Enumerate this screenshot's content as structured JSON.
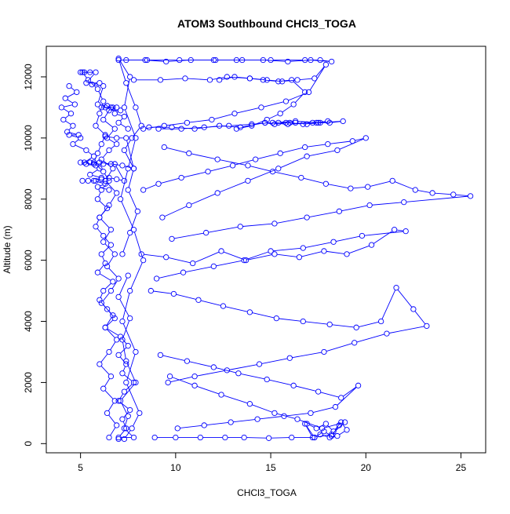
{
  "chart_data": {
    "type": "scatter",
    "title": "ATOM3 Southbound CHCl3_TOGA",
    "xlabel": "CHCl3_TOGA",
    "ylabel": "Altitude (m)",
    "xlim": [
      3.2,
      26.3
    ],
    "ylim": [
      -300,
      13000
    ],
    "x_ticks": [
      5,
      10,
      15,
      20,
      25
    ],
    "y_ticks": [
      0,
      2000,
      4000,
      6000,
      8000,
      10000,
      12000
    ],
    "grid": false,
    "legend": "none",
    "marker": "open-circle",
    "connected": true,
    "series_color": "#0000ff",
    "series": [
      {
        "x": [
          5.1,
          5.4,
          5.9,
          6.2,
          6.0,
          5.8,
          6.3,
          6.1,
          5.9,
          5.7,
          6.2,
          6.5,
          6.1,
          5.9,
          6.4,
          6.0,
          5.8,
          6.2,
          6.6,
          6.1,
          6.3,
          5.9,
          6.7,
          6.2,
          6.0,
          6.4,
          6.8,
          6.3,
          7.1,
          7.5,
          7.0,
          7.4,
          7.2,
          7.8,
          7.3,
          7.0,
          7.6,
          7.2,
          7.4,
          7.0,
          7.8,
          7.3,
          7.5,
          7.1,
          7.9,
          7.4,
          7.2,
          7.6,
          7.0,
          7.5
        ],
        "y": [
          12150,
          11900,
          11600,
          11200,
          10800,
          10400,
          10100,
          9800,
          9500,
          9200,
          8900,
          8600,
          8300,
          8000,
          7700,
          7400,
          7100,
          6800,
          6500,
          6200,
          5900,
          5600,
          5300,
          5000,
          4700,
          4400,
          4100,
          3800,
          3500,
          3200,
          2900,
          2600,
          2300,
          2000,
          1700,
          1400,
          1100,
          800,
          500,
          200,
          200,
          500,
          900,
          1400,
          2000,
          2700,
          3400,
          4100,
          4800,
          5500
        ]
      },
      {
        "x": [
          7.2,
          7.6,
          8.0,
          7.5,
          7.8,
          7.3,
          7.7,
          8.2,
          7.9,
          7.4,
          7.0,
          7.6,
          7.3,
          7.9,
          7.5,
          7.1,
          7.8,
          8.3,
          7.6,
          7.2,
          7.9,
          7.4,
          8.1,
          7.7,
          7.3,
          7.0
        ],
        "y": [
          6200,
          6900,
          7600,
          8300,
          9000,
          9600,
          10000,
          10400,
          11000,
          11800,
          12600,
          12000,
          11000,
          10000,
          9000,
          8000,
          7000,
          6000,
          5000,
          4000,
          3000,
          2000,
          1000,
          500,
          150,
          150
        ]
      },
      {
        "x": [
          6.5,
          6.9,
          6.4,
          6.8,
          6.2,
          6.6,
          6.0,
          6.5,
          6.9,
          6.3,
          6.7,
          6.1,
          6.6,
          7.0,
          6.4,
          6.8,
          6.2,
          6.6,
          6.0,
          6.5,
          6.9,
          6.3,
          6.7,
          6.1,
          6.5,
          6.9,
          6.4,
          6.8,
          6.2,
          6.6
        ],
        "y": [
          200,
          600,
          1000,
          1400,
          1800,
          2200,
          2600,
          3000,
          3400,
          3800,
          4200,
          4600,
          5000,
          5400,
          5800,
          6200,
          6600,
          7000,
          7400,
          7800,
          8200,
          8600,
          9000,
          9300,
          9600,
          9800,
          10000,
          10300,
          10600,
          11000
        ]
      },
      {
        "x": [
          4.4,
          4.8,
          4.2,
          4.7,
          4.0,
          4.5,
          4.1,
          4.6,
          4.3,
          4.9,
          4.4,
          5.0,
          4.6,
          5.3,
          5.7,
          5.2,
          5.8,
          6.0,
          5.5,
          6.1,
          5.7,
          6.3,
          5.9,
          6.5
        ],
        "y": [
          11700,
          11500,
          11300,
          11100,
          11000,
          10800,
          10600,
          10400,
          10200,
          10100,
          10100,
          10000,
          9800,
          9600,
          9400,
          9200,
          9100,
          9000,
          8800,
          8700,
          8600,
          8500,
          8400,
          8300
        ]
      },
      {
        "x": [
          5.2,
          5.5,
          5.0,
          5.8,
          5.3,
          6.0,
          5.6,
          6.2,
          5.9,
          6.4,
          6.1,
          6.7,
          6.3,
          6.9,
          6.5,
          7.1,
          6.8,
          7.3,
          7.0,
          7.5
        ],
        "y": [
          12150,
          12150,
          12150,
          12150,
          11800,
          11800,
          11750,
          11700,
          11100,
          11050,
          11000,
          11000,
          11000,
          11000,
          10900,
          10900,
          10800,
          10700,
          10500,
          10300
        ]
      },
      {
        "x": [
          5.1,
          5.4,
          5.8,
          6.1,
          6.5,
          6.9,
          7.3,
          6.8,
          6.2,
          5.7,
          5.3,
          5.0,
          5.5,
          6.0,
          6.6,
          7.2,
          7.8,
          7.4,
          6.9,
          6.3
        ],
        "y": [
          8600,
          8600,
          8600,
          8650,
          8700,
          8650,
          8600,
          9150,
          9150,
          9150,
          9150,
          9200,
          9200,
          9200,
          9150,
          9100,
          9000,
          10000,
          10000,
          10050
        ]
      },
      {
        "x": [
          7.0,
          8.5,
          10.2,
          12.1,
          13.5,
          15.0,
          16.8,
          17.6,
          18.2,
          17.1,
          15.9,
          14.6,
          13.2,
          12.0,
          10.8,
          9.5,
          8.4,
          7.4
        ],
        "y": [
          12550,
          12550,
          12550,
          12550,
          12550,
          12550,
          12550,
          12550,
          12500,
          12550,
          12500,
          12550,
          12550,
          12550,
          12550,
          12500,
          12550,
          12550
        ]
      },
      {
        "x": [
          7.8,
          9.2,
          10.5,
          11.8,
          12.7,
          13.9,
          14.8,
          15.6,
          16.4,
          17.3,
          17.9,
          17.0,
          15.8,
          14.5,
          13.1,
          11.9,
          10.6,
          9.4,
          8.3
        ],
        "y": [
          11900,
          11900,
          11950,
          11900,
          12000,
          11950,
          11900,
          11850,
          11900,
          11950,
          12400,
          11500,
          11200,
          11000,
          10800,
          10600,
          10500,
          10400,
          10300
        ]
      },
      {
        "x": [
          8.6,
          9.8,
          11.0,
          12.3,
          13.4,
          14.7,
          15.9,
          17.2,
          18.1,
          18.8,
          17.6,
          16.3,
          15.1,
          14.0,
          12.8,
          11.5,
          10.3,
          9.1
        ],
        "y": [
          10350,
          10350,
          10300,
          10400,
          10350,
          10500,
          10450,
          10500,
          10500,
          10550,
          10500,
          10550,
          10500,
          10450,
          10400,
          10350,
          10300,
          10300
        ]
      },
      {
        "x": [
          9.4,
          10.7,
          12.2,
          13.8,
          15.1,
          16.6,
          17.9,
          19.2,
          20.1,
          21.4,
          22.6,
          23.5,
          24.6,
          25.5,
          22.0,
          20.2,
          18.6,
          16.9,
          15.2,
          13.4,
          11.6,
          9.8
        ],
        "y": [
          9700,
          9500,
          9300,
          9100,
          8900,
          8700,
          8500,
          8350,
          8400,
          8600,
          8300,
          8200,
          8150,
          8100,
          7900,
          7800,
          7600,
          7400,
          7200,
          7100,
          6900,
          6700
        ]
      },
      {
        "x": [
          8.2,
          9.5,
          10.9,
          12.4,
          13.7,
          15.2,
          16.5,
          17.8,
          19.0,
          20.3,
          21.5,
          22.1,
          19.8,
          18.3,
          16.7,
          15.0,
          13.6,
          12.0,
          10.4,
          9.0
        ],
        "y": [
          6200,
          6100,
          5900,
          6300,
          6000,
          6200,
          6100,
          6300,
          6200,
          6500,
          7000,
          6950,
          6800,
          6600,
          6400,
          6300,
          6000,
          5800,
          5600,
          5400
        ]
      },
      {
        "x": [
          8.7,
          9.9,
          11.2,
          12.5,
          13.9,
          15.3,
          16.7,
          18.1,
          19.5,
          20.8,
          21.6,
          22.5,
          23.2,
          21.1,
          19.4,
          17.8,
          16.0,
          14.4,
          12.7,
          11.0,
          9.6
        ],
        "y": [
          5000,
          4900,
          4700,
          4500,
          4300,
          4100,
          4000,
          3900,
          3800,
          4000,
          5100,
          4400,
          3850,
          3600,
          3300,
          3000,
          2800,
          2600,
          2400,
          2200,
          2000
        ]
      },
      {
        "x": [
          9.2,
          10.6,
          12.0,
          13.3,
          14.8,
          16.2,
          17.5,
          18.7,
          19.6,
          18.4,
          17.1,
          15.7,
          14.3,
          12.9,
          11.5,
          10.1
        ],
        "y": [
          2900,
          2700,
          2500,
          2300,
          2100,
          1900,
          1700,
          1500,
          1900,
          1200,
          1000,
          900,
          800,
          700,
          600,
          500
        ]
      },
      {
        "x": [
          8.9,
          10.0,
          11.3,
          12.6,
          13.6,
          14.9,
          16.1,
          17.3,
          18.2,
          18.9,
          17.7,
          16.4,
          15.2,
          13.9,
          12.4,
          11.0,
          9.7
        ],
        "y": [
          200,
          200,
          200,
          200,
          200,
          180,
          200,
          200,
          300,
          700,
          500,
          800,
          1000,
          1300,
          1600,
          1900,
          2200
        ]
      },
      {
        "x": [
          16.9,
          17.4,
          17.9,
          18.3,
          18.7,
          19.0,
          18.5,
          18.1,
          17.6,
          17.2,
          16.8,
          17.3,
          17.8,
          18.2,
          18.6
        ],
        "y": [
          650,
          500,
          650,
          400,
          700,
          450,
          250,
          200,
          300,
          200,
          650,
          200,
          400,
          250,
          600
        ]
      },
      {
        "x": [
          8.3,
          9.1,
          10.3,
          11.7,
          13.0,
          14.2,
          15.5,
          16.8,
          18.0,
          19.3,
          20.0,
          18.5,
          16.9,
          15.4,
          13.8,
          12.2,
          10.7,
          9.3
        ],
        "y": [
          8300,
          8500,
          8700,
          8900,
          9100,
          9300,
          9500,
          9700,
          9800,
          9900,
          10000,
          9600,
          9400,
          9000,
          8600,
          8200,
          7800,
          7400
        ]
      },
      {
        "x": [
          14.7,
          15.2,
          15.8,
          16.3,
          16.9,
          17.5,
          18.0,
          17.4,
          16.7,
          16.0,
          15.4
        ],
        "y": [
          10500,
          10450,
          10500,
          10500,
          10450,
          10500,
          10550,
          10500,
          10450,
          10500,
          10500
        ]
      },
      {
        "x": [
          12.3,
          13.1,
          13.9,
          14.6,
          15.4,
          16.1,
          16.8,
          16.2,
          15.5,
          14.8,
          14.0,
          13.2
        ],
        "y": [
          11900,
          12000,
          11950,
          11900,
          11850,
          11900,
          11500,
          11100,
          10800,
          10600,
          10400,
          10300
        ]
      }
    ]
  }
}
